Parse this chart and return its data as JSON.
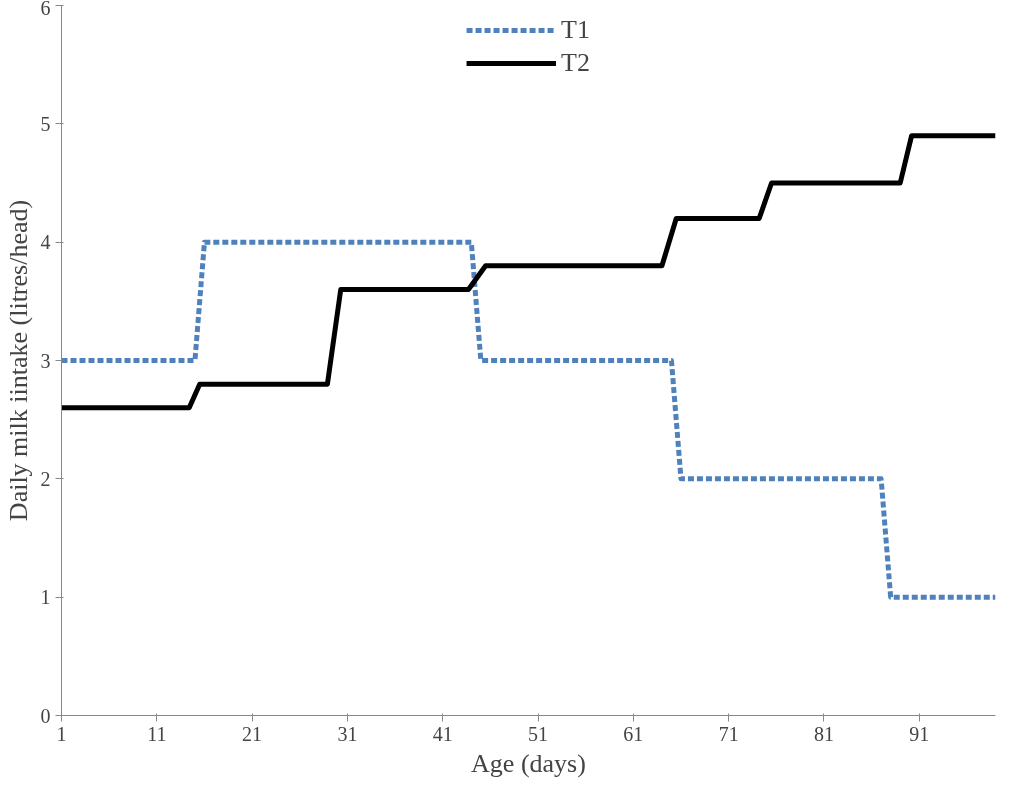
{
  "chart_data": {
    "type": "line",
    "xlabel": "Age (days)",
    "ylabel": "Daily milk iintake (litres/head)",
    "xlim": [
      1,
      99
    ],
    "xticks": [
      1,
      11,
      21,
      31,
      41,
      51,
      61,
      71,
      81,
      91
    ],
    "ylim": [
      0,
      6
    ],
    "yticks": [
      0,
      1,
      2,
      3,
      4,
      5,
      6
    ],
    "grid": false,
    "legend": "top",
    "marker": "none",
    "series": [
      {
        "name": "T1",
        "color": "#4f81bd",
        "line_style": "dashed",
        "x": [
          1,
          15,
          16,
          44,
          45,
          65,
          66,
          87,
          88,
          99
        ],
        "values": [
          3,
          3,
          4,
          4,
          3,
          3,
          2,
          2,
          1,
          1
        ]
      },
      {
        "name": "T2",
        "color": "#000000",
        "line_style": "solid",
        "x": [
          1,
          14.4,
          15.5,
          28.9,
          30.3,
          43.7,
          45.5,
          64,
          65.5,
          74.2,
          75.5,
          89,
          90.2,
          99
        ],
        "values": [
          2.6,
          2.6,
          2.8,
          2.8,
          3.6,
          3.6,
          3.8,
          3.8,
          4.2,
          4.2,
          4.5,
          4.5,
          4.9,
          4.9
        ]
      }
    ]
  }
}
